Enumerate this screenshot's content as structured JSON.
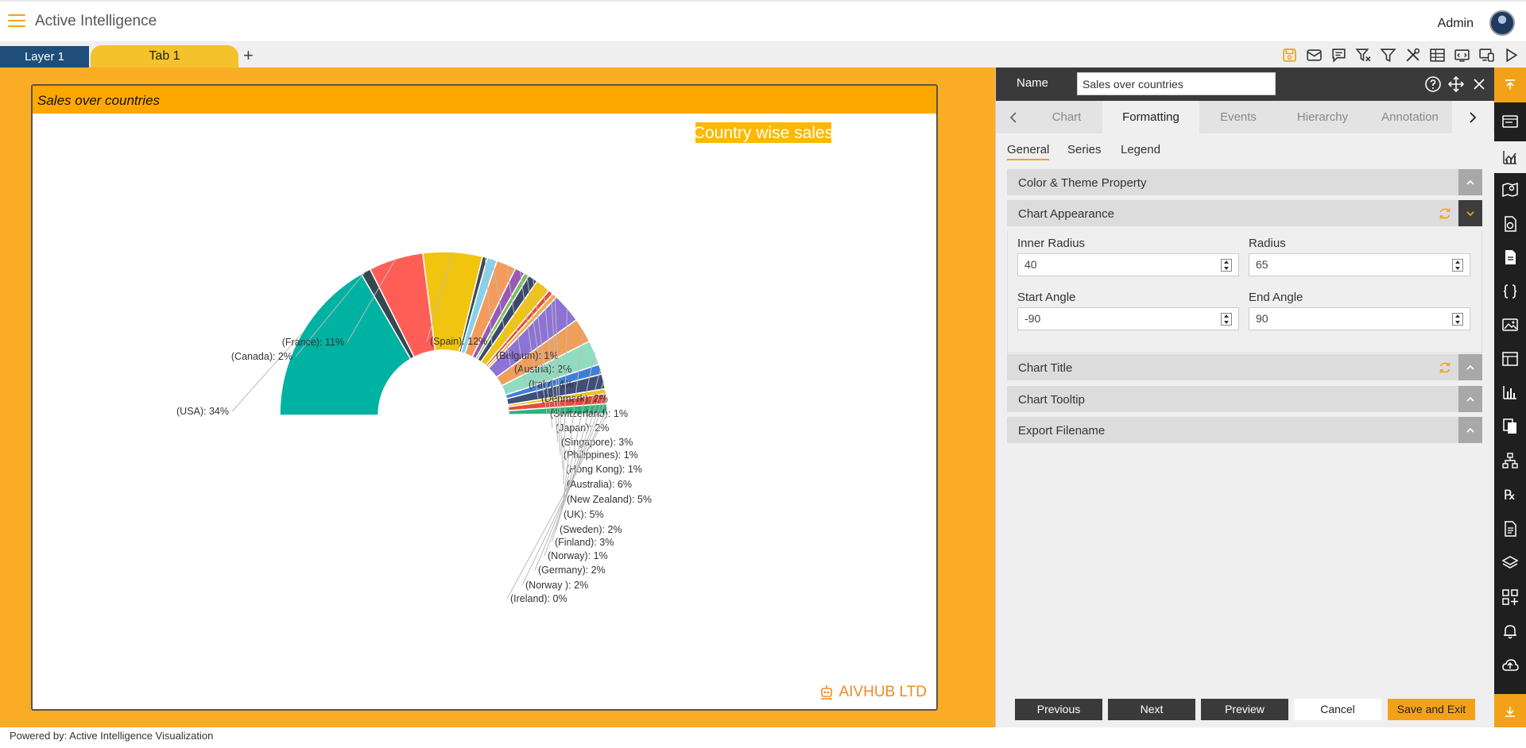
{
  "app": {
    "title": "Active Intelligence",
    "user": "Admin",
    "powered_by": "Powered by: Active Intelligence Visualization"
  },
  "tabs": {
    "layer": "Layer 1",
    "active": "Tab 1",
    "add": "+"
  },
  "widget": {
    "header": "Sales over countries",
    "brand": "AIVHUB LTD"
  },
  "panel": {
    "name_label": "Name",
    "name_value": "Sales over countries",
    "tabs": [
      "Chart",
      "Formatting",
      "Events",
      "Hierarchy",
      "Annotation"
    ],
    "subtabs": [
      "General",
      "Series",
      "Legend"
    ],
    "sections": {
      "color_theme": "Color & Theme Property",
      "appearance": "Chart Appearance",
      "title": "Chart Title",
      "tooltip": "Chart Tooltip",
      "export": "Export Filename"
    },
    "fields": {
      "inner_radius_label": "Inner Radius",
      "inner_radius": "40",
      "radius_label": "Radius",
      "radius": "65",
      "start_angle_label": "Start Angle",
      "start_angle": "-90",
      "end_angle_label": "End Angle",
      "end_angle": "90"
    },
    "buttons": {
      "previous": "Previous",
      "next": "Next",
      "preview": "Preview",
      "cancel": "Cancel",
      "save_exit": "Save and Exit"
    }
  },
  "colors": {
    "accent": "#f4a11a",
    "canvas": "#fbac25",
    "header_bar": "#fca800",
    "tab_layer": "#1e4e79",
    "tab_active": "#f4c22a"
  },
  "chart_data": {
    "type": "pie",
    "title": "Country wise sales",
    "inner_radius_pct": 40,
    "radius_pct": 65,
    "start_angle": -90,
    "end_angle": 90,
    "slices": [
      {
        "label": "(USA): 34%",
        "name": "USA",
        "value": 34,
        "color": "#00b2a2"
      },
      {
        "label": "(Canada): 2%",
        "name": "Canada",
        "value": 2,
        "color": "#37474f"
      },
      {
        "label": "(France): 11%",
        "name": "France",
        "value": 11,
        "color": "#ff5e57"
      },
      {
        "label": "(Spain): 12%",
        "name": "Spain",
        "value": 12,
        "color": "#f1c40f"
      },
      {
        "label": "(Belgium): 1%",
        "name": "Belgium",
        "value": 1,
        "color": "#3d4a57"
      },
      {
        "label": "(Austria): 2%",
        "name": "Austria",
        "value": 2,
        "color": "#87d1ea"
      },
      {
        "label": "(Italy): 4%",
        "name": "Italy",
        "value": 4,
        "color": "#f39c5a"
      },
      {
        "label": "(Denmark): 2%",
        "name": "Denmark",
        "value": 2,
        "color": "#9b59b6"
      },
      {
        "label": "(Switzerland): 1%",
        "name": "Switzerland",
        "value": 1,
        "color": "#7cbf5a"
      },
      {
        "label": "(Japan): 2%",
        "name": "Japan",
        "value": 2,
        "color": "#3b4a6b"
      },
      {
        "label": "(Singapore): 3%",
        "name": "Singapore",
        "value": 3,
        "color": "#f1c40f"
      },
      {
        "label": "(Philippines): 1%",
        "name": "Philippines",
        "value": 1,
        "color": "#e74c3c"
      },
      {
        "label": "(Hong Kong): 1%",
        "name": "Hong Kong",
        "value": 1,
        "color": "#f5b041"
      },
      {
        "label": "(Australia): 6%",
        "name": "Australia",
        "value": 6,
        "color": "#8e73d6"
      },
      {
        "label": "(New Zealand): 5%",
        "name": "New Zealand",
        "value": 5,
        "color": "#ef9f5a"
      },
      {
        "label": "(UK): 5%",
        "name": "UK",
        "value": 5,
        "color": "#8fdcc0"
      },
      {
        "label": "(Sweden): 2%",
        "name": "Sweden",
        "value": 2,
        "color": "#3f7fd8"
      },
      {
        "label": "(Finland): 3%",
        "name": "Finland",
        "value": 3,
        "color": "#3e4f7a"
      },
      {
        "label": "(Norway): 1%",
        "name": "Norway",
        "value": 1,
        "color": "#f1c40f"
      },
      {
        "label": "(Germany): 2%",
        "name": "Germany",
        "value": 2,
        "color": "#e74c3c"
      },
      {
        "label": "(Norway ): 2%",
        "name": "Norway ",
        "value": 2,
        "color": "#2fb37a"
      },
      {
        "label": "(Ireland): 0%",
        "name": "Ireland",
        "value": 0.3,
        "color": "#5a6e7a"
      }
    ]
  }
}
